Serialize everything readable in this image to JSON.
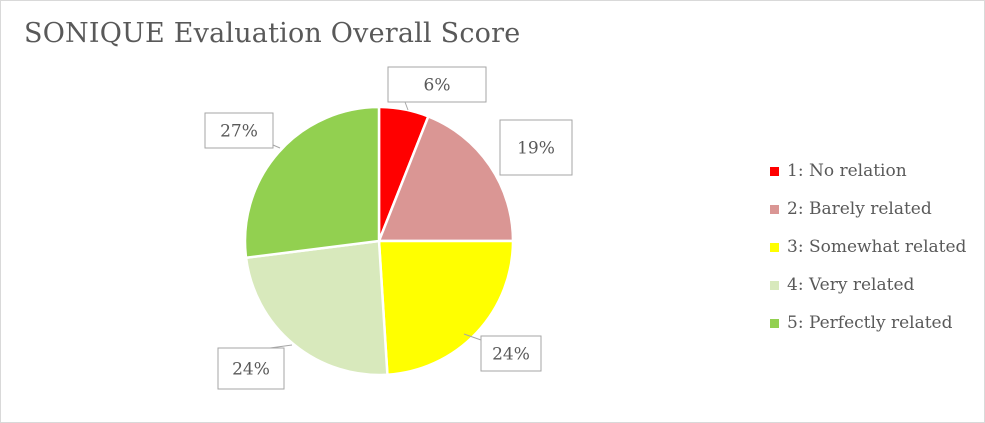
{
  "chart_data": {
    "type": "pie",
    "title": "SONIQUE Evaluation Overall Score",
    "categories": [
      "1: No relation",
      "2: Barely related",
      "3: Somewhat related",
      "4: Very related",
      "5: Perfectly related"
    ],
    "values": [
      6,
      19,
      24,
      24,
      27
    ],
    "data_labels": [
      "6%",
      "19%",
      "24%",
      "24%",
      "27%"
    ],
    "colors": [
      "#ff0000",
      "#da9694",
      "#ffff00",
      "#d8e9bc",
      "#92d050"
    ],
    "legend_position": "right",
    "start_angle": "12 o'clock, clockwise"
  }
}
